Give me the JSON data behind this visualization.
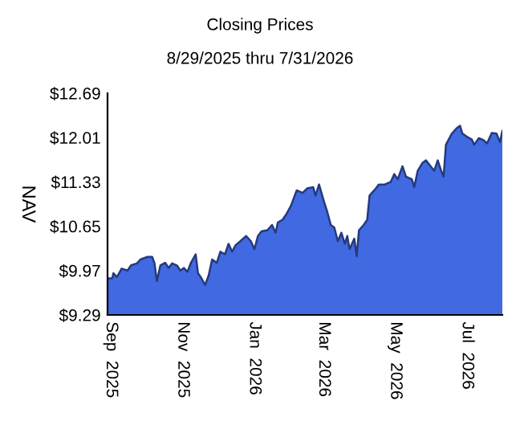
{
  "chart_data": {
    "type": "area",
    "title": "Closing Prices",
    "subtitle": "8/29/2025 thru 7/31/2026",
    "ylabel": "NAV",
    "x": [
      "2025-08-29",
      "2025-09-02",
      "2025-09-03",
      "2025-09-06",
      "2025-09-10",
      "2025-09-15",
      "2025-09-18",
      "2025-09-23",
      "2025-09-26",
      "2025-10-02",
      "2025-10-06",
      "2025-10-08",
      "2025-10-10",
      "2025-10-13",
      "2025-10-17",
      "2025-10-20",
      "2025-10-23",
      "2025-10-27",
      "2025-10-30",
      "2025-11-02",
      "2025-11-05",
      "2025-11-08",
      "2025-11-12",
      "2025-11-14",
      "2025-11-17",
      "2025-11-20",
      "2025-11-23",
      "2025-11-26",
      "2025-11-30",
      "2025-12-03",
      "2025-12-07",
      "2025-12-10",
      "2025-12-13",
      "2025-12-16",
      "2025-12-20",
      "2025-12-25",
      "2025-12-29",
      "2026-01-01",
      "2026-01-04",
      "2026-01-07",
      "2026-01-12",
      "2026-01-16",
      "2026-01-19",
      "2026-01-21",
      "2026-01-25",
      "2026-01-28",
      "2026-02-01",
      "2026-02-06",
      "2026-02-11",
      "2026-02-15",
      "2026-02-20",
      "2026-02-22",
      "2026-02-25",
      "2026-03-01",
      "2026-03-04",
      "2026-03-07",
      "2026-03-10",
      "2026-03-13",
      "2026-03-16",
      "2026-03-19",
      "2026-03-21",
      "2026-03-23",
      "2026-03-27",
      "2026-03-29",
      "2026-03-31",
      "2026-04-04",
      "2026-04-07",
      "2026-04-09",
      "2026-04-13",
      "2026-04-17",
      "2026-04-22",
      "2026-04-27",
      "2026-04-30",
      "2026-05-03",
      "2026-05-07",
      "2026-05-10",
      "2026-05-15",
      "2026-05-17",
      "2026-05-20",
      "2026-05-24",
      "2026-05-27",
      "2026-05-31",
      "2026-06-03",
      "2026-06-06",
      "2026-06-09",
      "2026-06-11",
      "2026-06-13",
      "2026-06-18",
      "2026-06-22",
      "2026-06-25",
      "2026-06-27",
      "2026-07-01",
      "2026-07-05",
      "2026-07-07",
      "2026-07-11",
      "2026-07-15",
      "2026-07-18",
      "2026-07-22",
      "2026-07-26",
      "2026-07-29",
      "2026-07-31"
    ],
    "series": [
      {
        "color": "#4169e1",
        "values": [
          9.85,
          9.85,
          9.93,
          9.87,
          10.0,
          9.97,
          10.05,
          10.08,
          10.14,
          10.18,
          10.18,
          10.08,
          9.81,
          10.05,
          10.09,
          10.01,
          10.08,
          10.05,
          9.97,
          10.01,
          9.95,
          10.09,
          10.22,
          9.93,
          9.85,
          9.75,
          9.89,
          10.14,
          10.09,
          10.26,
          10.22,
          10.38,
          10.26,
          10.36,
          10.42,
          10.5,
          10.42,
          10.3,
          10.5,
          10.57,
          10.59,
          10.67,
          10.55,
          10.71,
          10.75,
          10.83,
          10.96,
          11.2,
          11.16,
          11.23,
          11.25,
          11.12,
          11.29,
          11.04,
          10.87,
          10.67,
          10.63,
          10.42,
          10.55,
          10.38,
          10.5,
          10.3,
          10.46,
          10.19,
          10.59,
          10.67,
          10.75,
          11.12,
          11.2,
          11.29,
          11.29,
          11.33,
          11.45,
          11.37,
          11.57,
          11.41,
          11.37,
          11.25,
          11.5,
          11.62,
          11.66,
          11.57,
          11.5,
          11.66,
          11.5,
          11.41,
          11.9,
          12.07,
          12.15,
          12.19,
          12.07,
          12.02,
          11.98,
          11.9,
          12.0,
          11.97,
          11.92,
          12.08,
          12.07,
          11.94,
          12.11
        ]
      }
    ],
    "xlim": [
      "2025-08-29",
      "2026-07-31"
    ],
    "xticks": [
      {
        "value": "2025-09-01",
        "label": "Sep  2025"
      },
      {
        "value": "2025-11-01",
        "label": "Nov  2025"
      },
      {
        "value": "2026-01-01",
        "label": "Jan  2026"
      },
      {
        "value": "2026-03-01",
        "label": "Mar  2026"
      },
      {
        "value": "2026-05-01",
        "label": "May  2026"
      },
      {
        "value": "2026-07-01",
        "label": "Jul  2026"
      }
    ],
    "ylim": [
      9.29,
      12.69
    ],
    "yticks": [
      {
        "value": 9.29,
        "label": "$9.29"
      },
      {
        "value": 9.97,
        "label": "$9.97"
      },
      {
        "value": 10.65,
        "label": "$10.65"
      },
      {
        "value": 11.33,
        "label": "$11.33"
      },
      {
        "value": 12.01,
        "label": "$12.01"
      },
      {
        "value": 12.69,
        "label": "$12.69"
      }
    ],
    "grid": false,
    "legend": false
  }
}
